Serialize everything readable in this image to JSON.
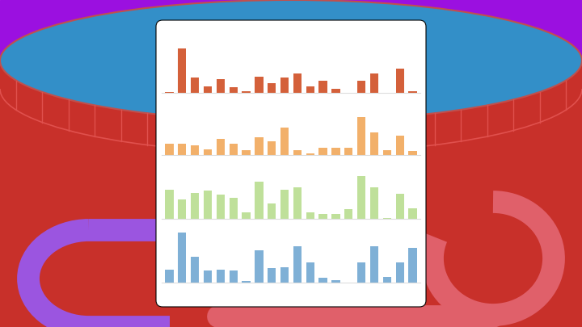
{
  "chart_data": [
    {
      "type": "bar",
      "categories": [
        null,
        null,
        null,
        null,
        null,
        null,
        null,
        null,
        null,
        null,
        null,
        null,
        null,
        null,
        null,
        null,
        null,
        null,
        null,
        null
      ],
      "values": [
        1,
        55,
        19,
        8,
        17,
        7,
        2,
        20,
        12,
        19,
        24,
        8,
        15,
        5,
        0,
        15,
        24,
        0,
        30,
        2
      ],
      "color": "#d4603a",
      "ylim": [
        0,
        65
      ],
      "yticks": [],
      "tick_labels": false
    },
    {
      "type": "bar",
      "categories": [
        null,
        null,
        null,
        null,
        null,
        null,
        null,
        null,
        null,
        null,
        null,
        null,
        null,
        null,
        null,
        null,
        null,
        null,
        null,
        null
      ],
      "values": [
        14,
        14,
        12,
        7,
        20,
        14,
        6,
        22,
        17,
        34,
        6,
        2,
        9,
        9,
        9,
        47,
        28,
        6,
        24,
        5
      ],
      "color": "#f2b06a",
      "ylim": [
        0,
        65
      ],
      "yticks": [],
      "tick_labels": false
    },
    {
      "type": "bar",
      "categories": [
        null,
        null,
        null,
        null,
        null,
        null,
        null,
        null,
        null,
        null,
        null,
        null,
        null,
        null,
        null,
        null,
        null,
        null,
        null,
        null
      ],
      "values": [
        36,
        24,
        32,
        35,
        30,
        26,
        8,
        46,
        19,
        36,
        39,
        8,
        6,
        6,
        12,
        53,
        39,
        1,
        31,
        13
      ],
      "color": "#bfe09a",
      "ylim": [
        0,
        65
      ],
      "yticks": [],
      "tick_labels": false
    },
    {
      "type": "bar",
      "categories": [
        null,
        null,
        null,
        null,
        null,
        null,
        null,
        null,
        null,
        null,
        null,
        null,
        null,
        null,
        null,
        null,
        null,
        null,
        null,
        null
      ],
      "values": [
        16,
        62,
        32,
        15,
        16,
        15,
        2,
        40,
        18,
        19,
        45,
        25,
        6,
        3,
        0,
        25,
        45,
        7,
        25,
        43
      ],
      "color": "#7fb0d6",
      "ylim": [
        0,
        65
      ],
      "yticks": [],
      "tick_labels": false
    }
  ]
}
